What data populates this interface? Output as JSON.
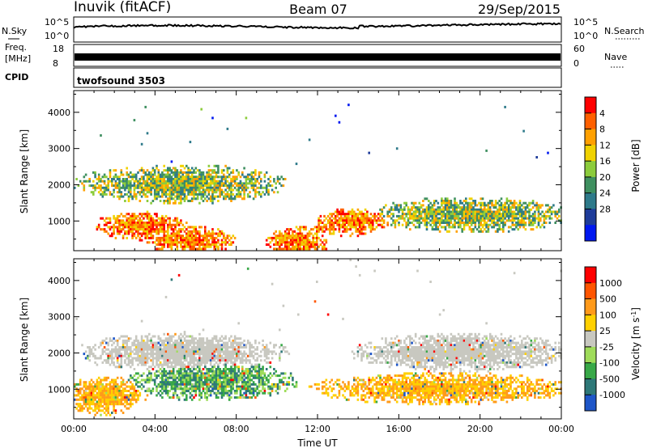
{
  "header": {
    "station": "Inuvik (fitACF)",
    "beam": "Beam 07",
    "date": "29/Sep/2015"
  },
  "strips": {
    "nsky_label": "N.Sky",
    "nsky_ticks": [
      "10^5",
      "10^0"
    ],
    "nsearch_label": "N.Search",
    "nsearch_ticks": [
      "10^5",
      "10^0"
    ],
    "freq_label_1": "Freq.",
    "freq_label_2": "[MHz]",
    "freq_ticks": [
      "18",
      "8"
    ],
    "nave_label": "Nave",
    "nave_ticks": [
      "60",
      "0"
    ],
    "cpid_label": "CPID",
    "cpid_value": "twofsound 3503"
  },
  "colors": {
    "power": [
      "#0018f0",
      "#1e3c9a",
      "#2e7a8a",
      "#3f9060",
      "#8ccc3c",
      "#f0d200",
      "#ffa000",
      "#ff6000",
      "#ff0000"
    ],
    "velocity": [
      "#ff0000",
      "#ff5500",
      "#ff9a1a",
      "#ffd000",
      "#c8c8c0",
      "#9fdc5a",
      "#38a848",
      "#2e7878",
      "#1e56c8"
    ]
  },
  "chart_data": [
    {
      "type": "heatmap",
      "title": "",
      "xlabel": "",
      "ylabel": "Slant Range [km]",
      "x_ticks": [
        "00:00",
        "04:00",
        "08:00",
        "12:00",
        "16:00",
        "20:00",
        "00:00"
      ],
      "x_range_hours": [
        0,
        24
      ],
      "y_ticks": [
        1000,
        2000,
        3000,
        4000
      ],
      "ylim": [
        180,
        4600
      ],
      "colorbar": {
        "label": "Power [dB]",
        "ticks": [
          4,
          8,
          12,
          16,
          20,
          24,
          28
        ]
      },
      "features": [
        {
          "x": [
            1.5,
            5.0
          ],
          "y": [
            700,
            1100
          ],
          "level": "high"
        },
        {
          "x": [
            4.0,
            7.5
          ],
          "y": [
            300,
            700
          ],
          "level": "high"
        },
        {
          "x": [
            10.0,
            12.0
          ],
          "y": [
            250,
            700
          ],
          "level": "high"
        },
        {
          "x": [
            12.3,
            15.0
          ],
          "y": [
            800,
            1200
          ],
          "level": "high"
        },
        {
          "x": [
            15.0,
            24.0
          ],
          "y": [
            900,
            1500
          ],
          "level": "medium"
        },
        {
          "x": [
            0.5,
            10.0
          ],
          "y": [
            1700,
            2400
          ],
          "level": "medium"
        }
      ]
    },
    {
      "type": "heatmap",
      "title": "",
      "xlabel": "Time UT",
      "ylabel": "Slant Range [km]",
      "x_ticks": [
        "00:00",
        "04:00",
        "08:00",
        "12:00",
        "16:00",
        "20:00",
        "00:00"
      ],
      "x_range_hours": [
        0,
        24
      ],
      "y_ticks": [
        1000,
        2000,
        3000,
        4000
      ],
      "ylim": [
        180,
        4600
      ],
      "colorbar": {
        "label": "Velocity [m s^-1]",
        "ticks": [
          1000,
          500,
          100,
          25,
          -25,
          -100,
          -500,
          -1000
        ]
      },
      "features": [
        {
          "x": [
            0.0,
            3.0
          ],
          "y": [
            500,
            1200
          ],
          "level": "negative"
        },
        {
          "x": [
            3.0,
            10.5
          ],
          "y": [
            900,
            1600
          ],
          "level": "positive"
        },
        {
          "x": [
            0.5,
            10.0
          ],
          "y": [
            1700,
            2400
          ],
          "level": "neutral"
        },
        {
          "x": [
            12.0,
            24.0
          ],
          "y": [
            800,
            1300
          ],
          "level": "negative"
        },
        {
          "x": [
            14.0,
            24.0
          ],
          "y": [
            1700,
            2400
          ],
          "level": "neutral"
        }
      ]
    }
  ]
}
